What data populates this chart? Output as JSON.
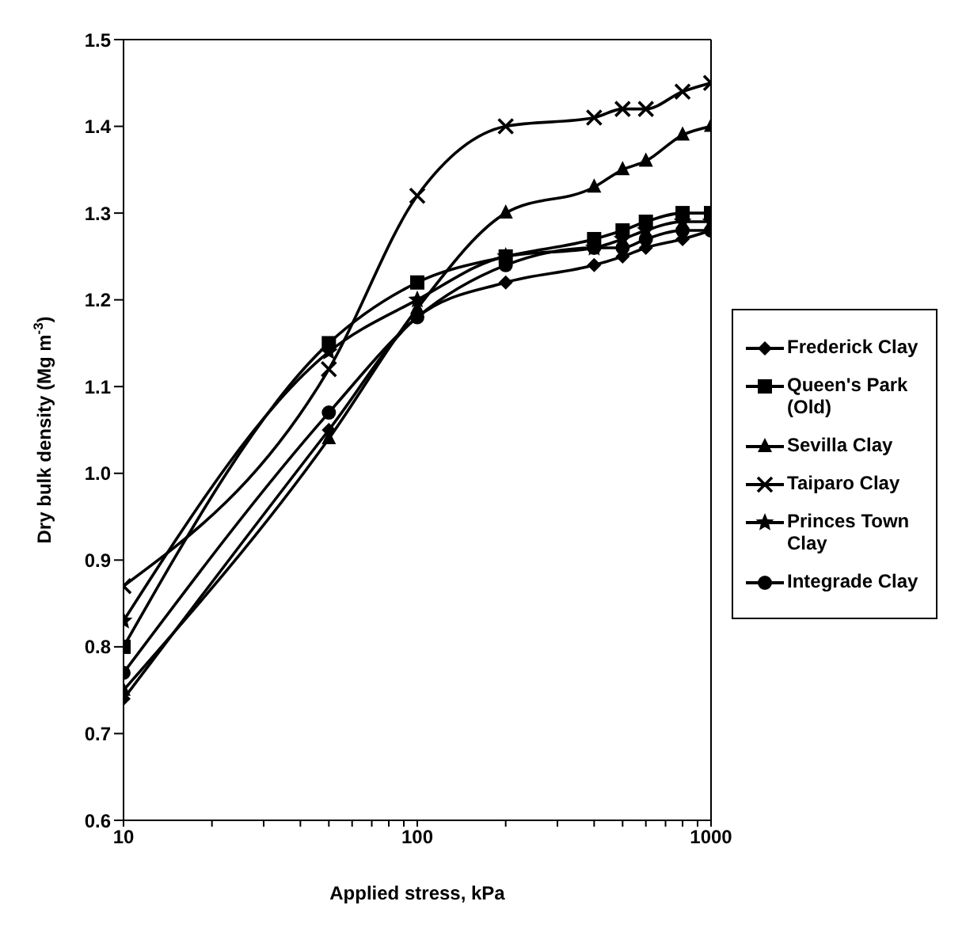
{
  "chart_data": {
    "type": "line",
    "xlabel": "Applied stress, kPa",
    "ylabel": "Dry bulk density (Mg m$^{-3}$)",
    "log": "x",
    "xlim": [
      10,
      1000
    ],
    "xticks": [
      10,
      {
        "value": 20,
        "label": null
      },
      {
        "value": 30,
        "label": null
      },
      {
        "value": 40,
        "label": null
      },
      {
        "value": 50,
        "label": null
      },
      {
        "value": 60,
        "label": null
      },
      {
        "value": 70,
        "label": null
      },
      {
        "value": 80,
        "label": null
      },
      {
        "value": 90,
        "label": null
      },
      100,
      {
        "value": 200,
        "label": null
      },
      {
        "value": 300,
        "label": null
      },
      {
        "value": 400,
        "label": null
      },
      {
        "value": 500,
        "label": null
      },
      {
        "value": 600,
        "label": null
      },
      {
        "value": 700,
        "label": null
      },
      {
        "value": 800,
        "label": null
      },
      {
        "value": 900,
        "label": null
      },
      1000
    ],
    "ylim": [
      0.6,
      1.5
    ],
    "yticks": [
      0.6,
      0.7,
      0.8,
      0.9,
      {
        "value": 1.0,
        "label": "1.0"
      },
      1.1,
      1.2,
      1.3,
      1.4,
      1.5
    ],
    "legend": "right",
    "line_style": "solid",
    "x": [
      10,
      50,
      100,
      200,
      400,
      500,
      600,
      800,
      1000
    ],
    "series": [
      {
        "name": "Frederick Clay",
        "color": "#000000",
        "marker": "diamond",
        "values": [
          0.74,
          1.05,
          1.18,
          1.22,
          1.24,
          1.25,
          1.26,
          1.27,
          1.28
        ]
      },
      {
        "name": "Queen's Park (Old)",
        "color": "#000000",
        "marker": "square",
        "values": [
          0.8,
          1.15,
          1.22,
          1.25,
          1.27,
          1.28,
          1.29,
          1.3,
          1.3
        ]
      },
      {
        "name": "Sevilla Clay",
        "color": "#000000",
        "marker": "triangle",
        "values": [
          0.75,
          1.04,
          1.19,
          1.3,
          1.33,
          1.35,
          1.36,
          1.39,
          1.4
        ]
      },
      {
        "name": "Taiparo Clay",
        "color": "#000000",
        "marker": "cross",
        "values": [
          0.87,
          1.12,
          1.32,
          1.4,
          1.41,
          1.42,
          1.42,
          1.44,
          1.45
        ]
      },
      {
        "name": "Princes Town Clay",
        "color": "#000000",
        "marker": "star",
        "values": [
          0.83,
          1.14,
          1.2,
          1.25,
          1.26,
          1.27,
          1.28,
          1.29,
          1.29
        ]
      },
      {
        "name": "Integrade Clay",
        "color": "#000000",
        "marker": "circle",
        "values": [
          0.77,
          1.07,
          1.18,
          1.24,
          1.26,
          1.26,
          1.27,
          1.28,
          1.28
        ]
      }
    ]
  }
}
